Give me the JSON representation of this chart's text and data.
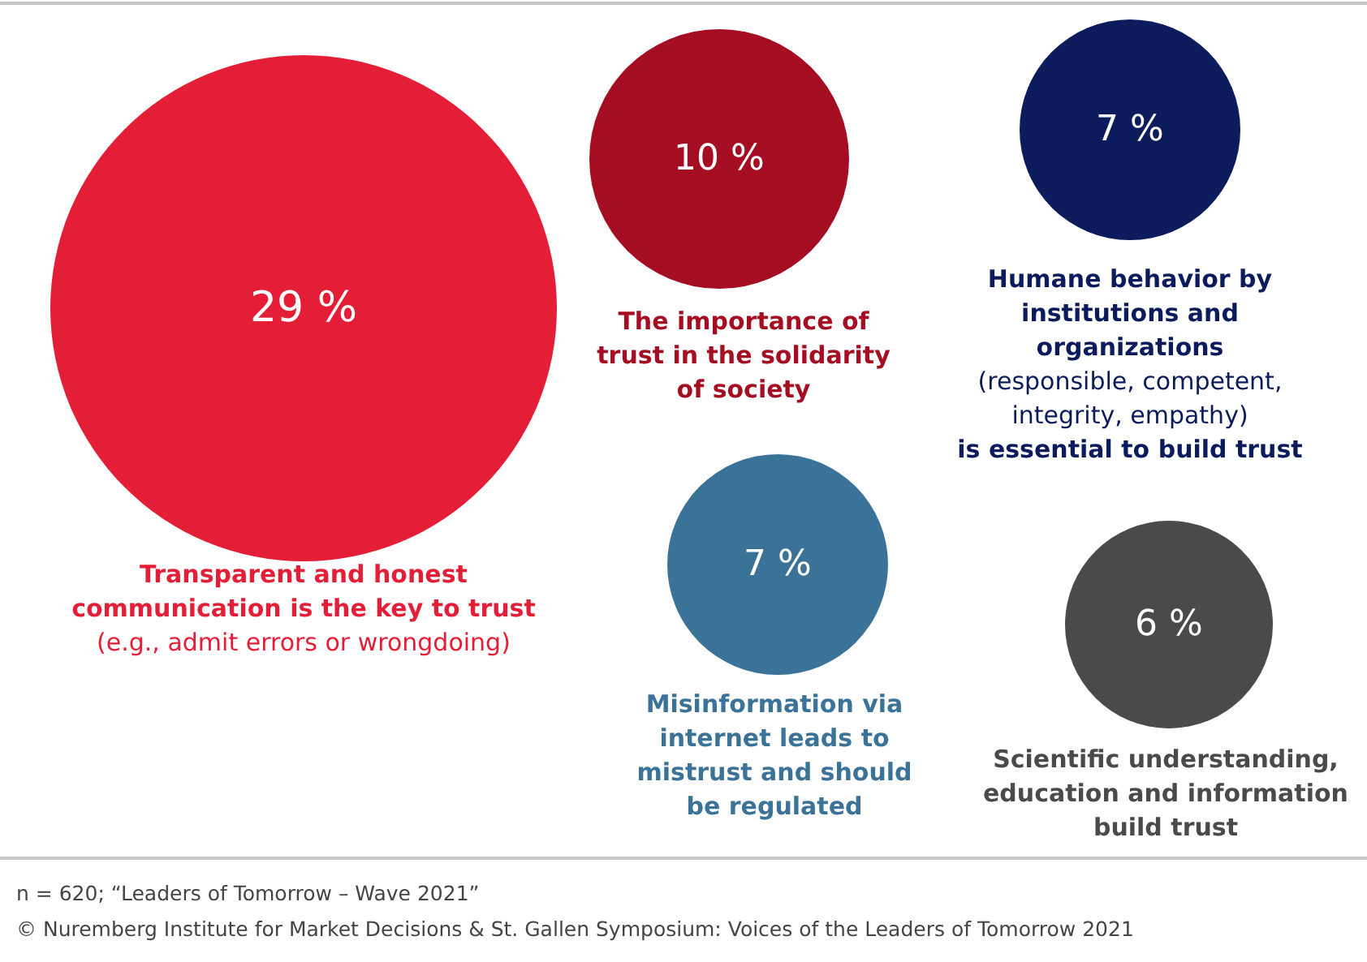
{
  "chart_data": {
    "type": "other",
    "categories": [
      "Transparent and honest communication is the key to trust (e.g., admit errors or wrongdoing)",
      "The importance of trust in the solidarity of society",
      "Humane behavior by institutions and organizations (responsible, competent, integrity, empathy) is essential to build trust",
      "Misinformation via internet leads to mistrust and should be regulated",
      "Scientific understanding, education and information build trust"
    ],
    "values": [
      29,
      10,
      7,
      7,
      6
    ],
    "value_labels": [
      "29 %",
      "10 %",
      "7 %",
      "7 %",
      "6 %"
    ],
    "colors": [
      "#e31e36",
      "#a50d22",
      "#0b1b5c",
      "#3a7298",
      "#4a4a4c"
    ],
    "annotations": [
      "n = 620; “Leaders of Tomorrow – Wave 2021”",
      "© Nuremberg Institute for Market Decisions & St. Gallen Symposium: Voices of the Leaders of Tomorrow 2021"
    ]
  }
}
